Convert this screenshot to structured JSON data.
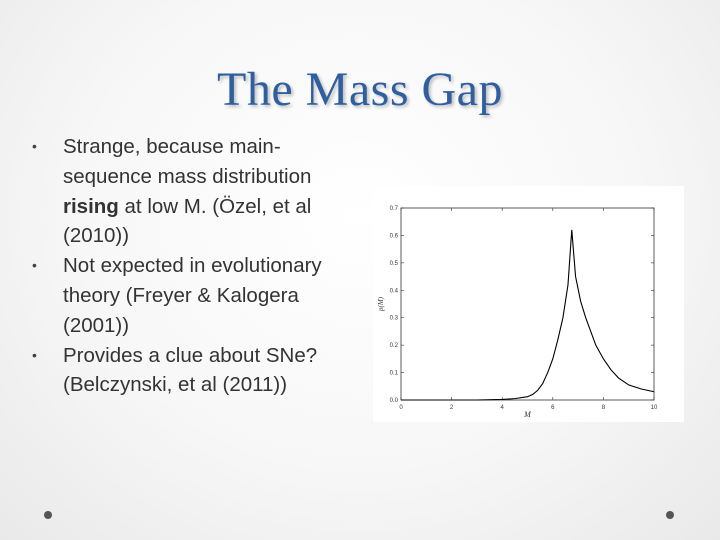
{
  "slide": {
    "title": "The Mass Gap",
    "bullets": [
      {
        "pre": "Strange, because main-sequence mass distribution ",
        "bold": "rising",
        "post": " at low M.  (Özel, et al (2010))"
      },
      {
        "pre": "Not expected in evolutionary theory (Freyer & Kalogera (2001))",
        "bold": "",
        "post": ""
      },
      {
        "pre": "Provides a clue about SNe?  (Belczynski, et al (2011))",
        "bold": "",
        "post": ""
      }
    ]
  },
  "colors": {
    "title": "#2f5f9e",
    "text": "#333333",
    "curve": "#000000"
  },
  "chart_data": {
    "type": "line",
    "xlabel": "M",
    "ylabel": "p(M)",
    "xlim": [
      0,
      10
    ],
    "ylim": [
      0,
      0.7
    ],
    "xticks": [
      "0",
      "2",
      "4",
      "6",
      "8",
      "10"
    ],
    "yticks": [
      "0.0",
      "0.1",
      "0.2",
      "0.3",
      "0.4",
      "0.5",
      "0.6",
      "0.7"
    ],
    "grid": false,
    "series": [
      {
        "x": [
          0,
          1,
          2,
          3,
          4,
          4.5,
          5,
          5.2,
          5.4,
          5.6,
          5.8,
          6.0,
          6.2,
          6.4,
          6.6,
          6.75,
          6.9,
          7.1,
          7.3,
          7.5,
          7.7,
          8.0,
          8.3,
          8.6,
          9.0,
          9.5,
          10
        ],
        "y": [
          0,
          0,
          0,
          0,
          0.002,
          0.005,
          0.012,
          0.02,
          0.035,
          0.06,
          0.1,
          0.15,
          0.22,
          0.3,
          0.42,
          0.62,
          0.45,
          0.36,
          0.3,
          0.25,
          0.2,
          0.15,
          0.11,
          0.08,
          0.055,
          0.04,
          0.03
        ]
      }
    ]
  }
}
